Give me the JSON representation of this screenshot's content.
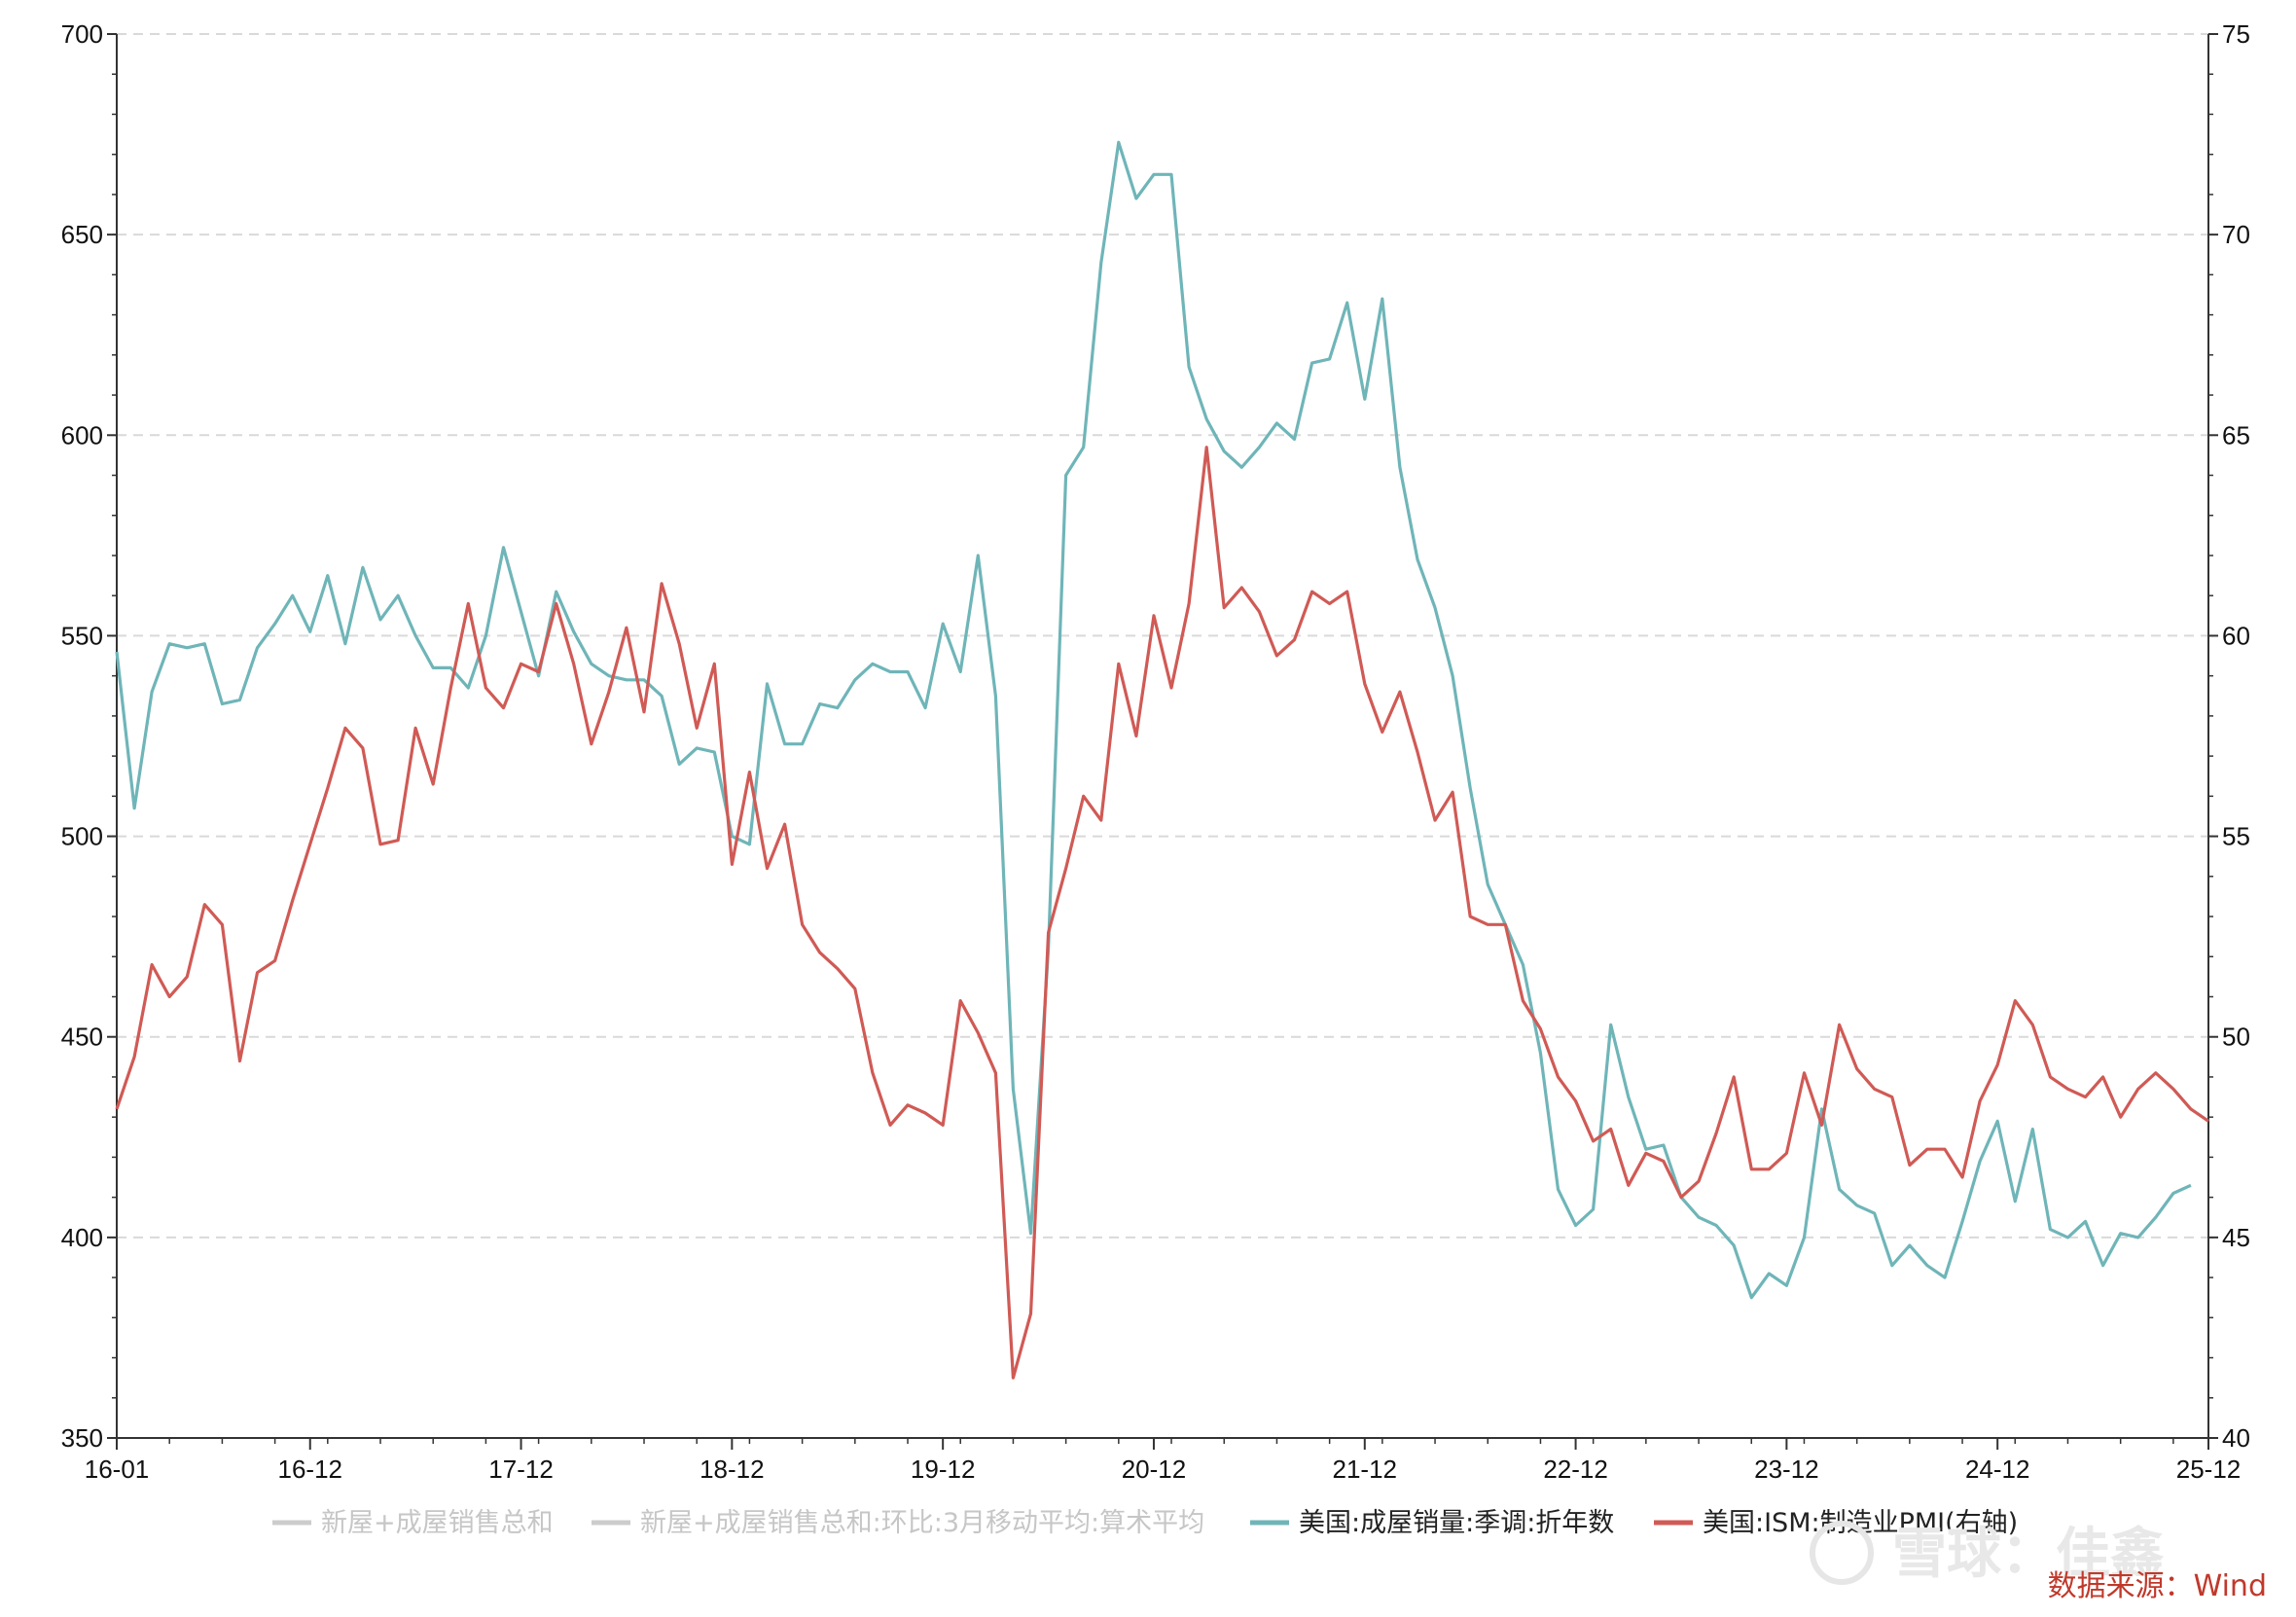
{
  "chart_data": {
    "type": "line",
    "title": "",
    "x_ticks": [
      "16-01",
      "16-12",
      "17-12",
      "18-12",
      "19-12",
      "20-12",
      "21-12",
      "22-12",
      "23-12",
      "24-12",
      "25-12"
    ],
    "y_left": {
      "min": 350,
      "max": 700,
      "ticks": [
        350,
        400,
        450,
        500,
        550,
        600,
        650,
        700
      ]
    },
    "y_right": {
      "min": 40,
      "max": 75,
      "ticks": [
        40,
        45,
        50,
        55,
        60,
        65,
        70,
        75
      ]
    },
    "grid": "horizontal-dashed",
    "legend_position": "bottom",
    "legend": [
      {
        "label": "新屋+成屋销售总和",
        "color": "#cccccc"
      },
      {
        "label": "新屋+成屋销售总和:环比:3月移动平均:算术平均",
        "color": "#cccccc"
      },
      {
        "label": "美国:成屋销量:季调:折年数",
        "color": "#6fb5b8"
      },
      {
        "label": "美国:ISM:制造业PMI(右轴)",
        "color": "#d05a55"
      }
    ],
    "series": [
      {
        "name": "美国:成屋销量:季调:折年数",
        "axis": "left",
        "color": "#6fb5b8",
        "values": [
          546,
          507,
          536,
          548,
          547,
          548,
          533,
          534,
          547,
          553,
          560,
          551,
          565,
          548,
          567,
          554,
          560,
          550,
          542,
          542,
          537,
          550,
          572,
          556,
          540,
          561,
          551,
          543,
          540,
          539,
          539,
          535,
          518,
          522,
          521,
          500,
          498,
          538,
          523,
          523,
          533,
          532,
          539,
          543,
          541,
          541,
          532,
          553,
          541,
          570,
          535,
          437,
          401,
          472,
          590,
          597,
          643,
          673,
          659,
          665,
          665,
          617,
          604,
          596,
          592,
          597,
          603,
          599,
          618,
          619,
          633,
          609,
          634,
          592,
          569,
          557,
          540,
          512,
          488,
          478,
          468,
          446,
          412,
          403,
          407,
          453,
          435,
          422,
          423,
          410,
          405,
          403,
          398,
          385,
          391,
          388,
          400,
          432,
          412,
          408,
          406,
          393,
          398,
          393,
          390,
          404,
          419,
          429,
          409,
          427,
          402,
          400,
          404,
          393,
          401,
          400,
          405,
          411,
          413
        ]
      },
      {
        "name": "美国:ISM:制造业PMI(右轴)",
        "axis": "right",
        "color": "#d05a55",
        "values": [
          48.2,
          49.5,
          51.8,
          51.0,
          51.5,
          53.3,
          52.8,
          49.4,
          51.6,
          51.9,
          53.4,
          54.8,
          56.2,
          57.7,
          57.2,
          54.8,
          54.9,
          57.7,
          56.3,
          58.7,
          60.8,
          58.7,
          58.2,
          59.3,
          59.1,
          60.8,
          59.3,
          57.3,
          58.6,
          60.2,
          58.1,
          61.3,
          59.8,
          57.7,
          59.3,
          54.3,
          56.6,
          54.2,
          55.3,
          52.8,
          52.1,
          51.7,
          51.2,
          49.1,
          47.8,
          48.3,
          48.1,
          47.8,
          50.9,
          50.1,
          49.1,
          41.5,
          43.1,
          52.6,
          54.2,
          56.0,
          55.4,
          59.3,
          57.5,
          60.5,
          58.7,
          60.8,
          64.7,
          60.7,
          61.2,
          60.6,
          59.5,
          59.9,
          61.1,
          60.8,
          61.1,
          58.8,
          57.6,
          58.6,
          57.1,
          55.4,
          56.1,
          53.0,
          52.8,
          52.8,
          50.9,
          50.2,
          49.0,
          48.4,
          47.4,
          47.7,
          46.3,
          47.1,
          46.9,
          46.0,
          46.4,
          47.6,
          49.0,
          46.7,
          46.7,
          47.1,
          49.1,
          47.8,
          50.3,
          49.2,
          48.7,
          48.5,
          46.8,
          47.2,
          47.2,
          46.5,
          48.4,
          49.3,
          50.9,
          50.3,
          49.0,
          48.7,
          48.5,
          49.0,
          48.0,
          48.7,
          49.1,
          48.7,
          48.2,
          47.9
        ]
      }
    ]
  },
  "source_label": "数据来源：Wind",
  "watermark": "雪球：佳鑫"
}
